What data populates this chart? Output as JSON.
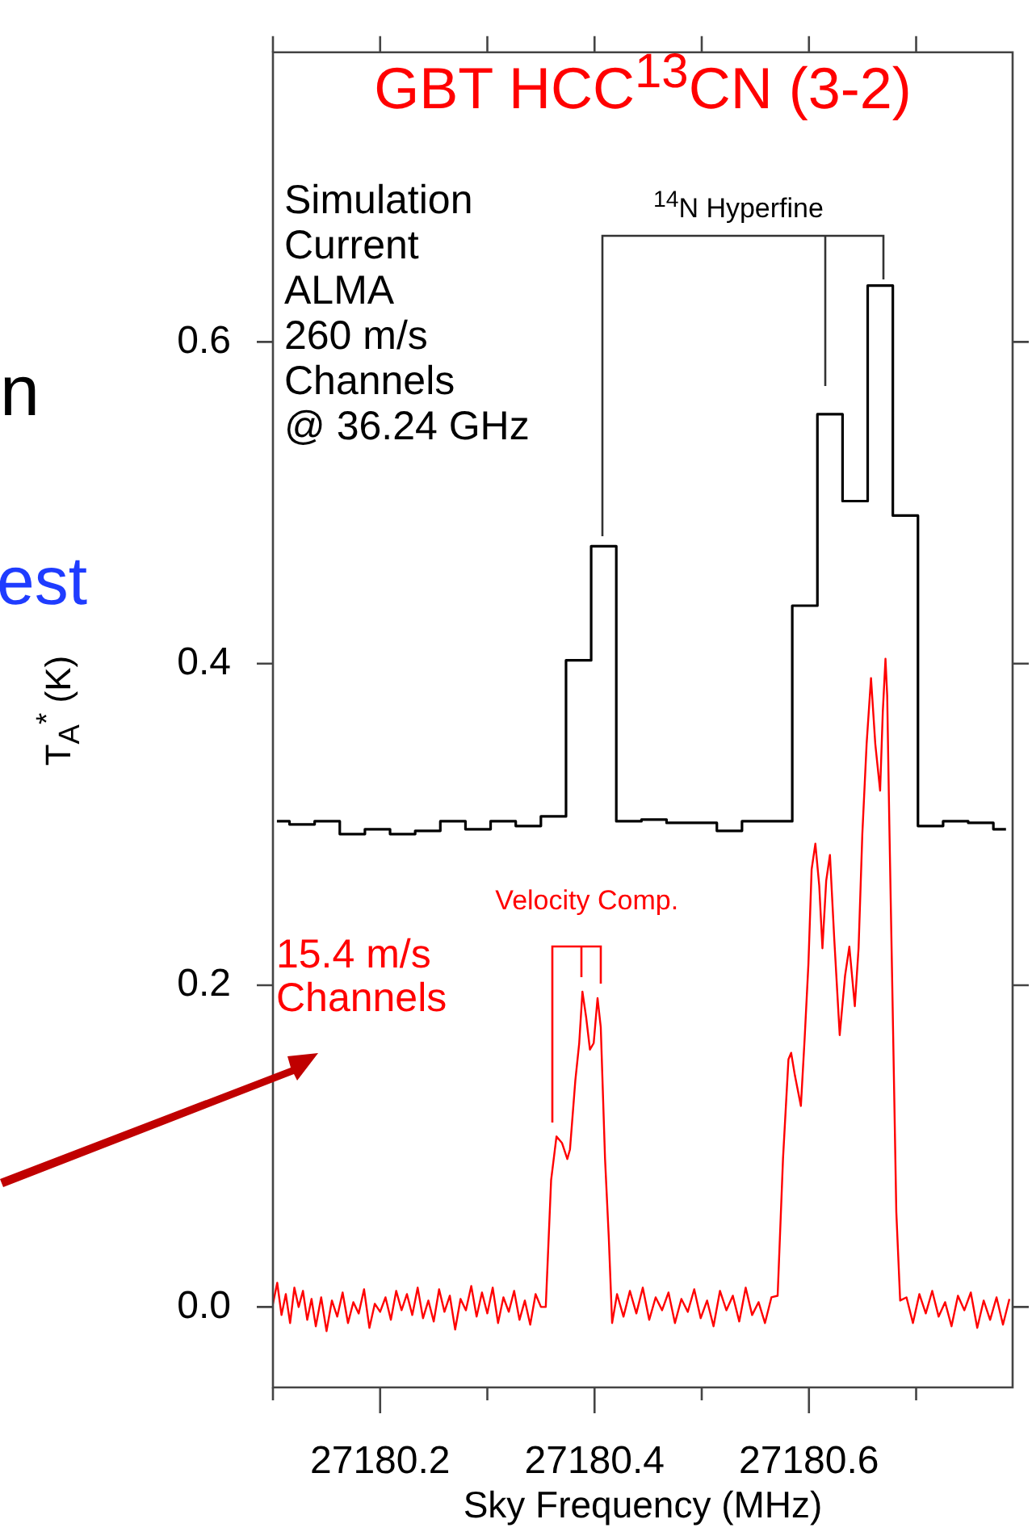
{
  "chart_data": {
    "type": "line",
    "title": "GBT HCC$^{13}$CN (3-2)",
    "xlabel": "Sky Frequency (MHz)",
    "ylabel": "T$_{A}$$^{*}$ (K)",
    "xlim": [
      27180.1,
      27180.79
    ],
    "xticks": [
      {
        "value": 27180.1,
        "label": null
      },
      27180.2,
      {
        "value": 27180.3,
        "label": null
      },
      27180.4,
      {
        "value": 27180.5,
        "label": null
      },
      27180.6,
      {
        "value": 27180.7,
        "label": null
      }
    ],
    "ylim": [
      -0.05,
      0.78
    ],
    "yticks": [
      {
        "value": 0,
        "label": "0.0"
      },
      0.2,
      0.4,
      0.6
    ],
    "annotations": [
      "n",
      "est",
      "Velocity Comp.",
      "$^{14}$N Hyperfine"
    ],
    "series": [
      {
        "name": "Simulation\nCurrent\nALMA\n260 m/s\nChannels\n@ 36.24 GHz",
        "type": "step",
        "color": "#000000",
        "x": [
          27180.1037,
          27180.1272,
          27180.1506,
          27180.1741,
          27180.1975,
          27180.221,
          27180.2444,
          27180.2679,
          27180.2913,
          27180.3148,
          27180.3382,
          27180.3617,
          27180.3851,
          27180.4086,
          27180.432,
          27180.4555,
          27180.4789,
          27180.5024,
          27180.5258,
          27180.5493,
          27180.5727,
          27180.5962,
          27180.6196,
          27180.6431,
          27180.6665,
          27180.69,
          27180.7134,
          27180.7369,
          27180.7603,
          27180.7838
        ],
        "values": [
          0.302,
          0.3,
          0.302,
          0.294,
          0.297,
          0.294,
          0.296,
          0.302,
          0.297,
          0.302,
          0.299,
          0.305,
          0.402,
          0.473,
          0.302,
          0.303,
          0.301,
          0.301,
          0.296,
          0.302,
          0.302,
          0.436,
          0.555,
          0.501,
          0.635,
          0.492,
          0.299,
          0.302,
          0.301,
          0.297
        ]
      },
      {
        "name": "15.4 m/s\nChannels",
        "type": "line",
        "color": "#ff0000",
        "x": [
          27180.1,
          27180.104,
          27180.108,
          27180.112,
          27180.116,
          27180.12,
          27180.124,
          27180.128,
          27180.132,
          27180.136,
          27180.14,
          27180.145,
          27180.15,
          27180.155,
          27180.16,
          27180.165,
          27180.17,
          27180.175,
          27180.18,
          27180.185,
          27180.19,
          27180.195,
          27180.2,
          27180.205,
          27180.21,
          27180.215,
          27180.22,
          27180.225,
          27180.23,
          27180.235,
          27180.24,
          27180.245,
          27180.25,
          27180.255,
          27180.26,
          27180.265,
          27180.27,
          27180.275,
          27180.28,
          27180.285,
          27180.29,
          27180.295,
          27180.3,
          27180.305,
          27180.31,
          27180.315,
          27180.32,
          27180.325,
          27180.33,
          27180.335,
          27180.34,
          27180.345,
          27180.35,
          27180.3545,
          27180.3595,
          27180.3645,
          27180.3696,
          27180.3746,
          27180.3771,
          27180.3821,
          27180.3857,
          27180.3887,
          27180.3922,
          27180.3957,
          27180.3992,
          27180.4028,
          27180.4058,
          27180.4098,
          27180.4133,
          27180.4164,
          27180.421,
          27180.427,
          27180.433,
          27180.439,
          27180.445,
          27180.451,
          27180.457,
          27180.463,
          27180.469,
          27180.475,
          27180.481,
          27180.487,
          27180.493,
          27180.499,
          27180.505,
          27180.511,
          27180.517,
          27180.523,
          27180.529,
          27180.535,
          27180.541,
          27180.547,
          27180.553,
          27180.559,
          27180.565,
          27180.5708,
          27180.5758,
          27180.5809,
          27180.5834,
          27180.5869,
          27180.5925,
          27180.596,
          27180.5995,
          27180.6025,
          27180.606,
          27180.6096,
          27180.6126,
          27180.6161,
          27180.6196,
          27180.6236,
          27180.6287,
          27180.6337,
          27180.6377,
          27180.6428,
          27180.6463,
          27180.6498,
          27180.6538,
          27180.6579,
          27180.6619,
          27180.6664,
          27180.6689,
          27180.6714,
          27180.673,
          27180.675,
          27180.678,
          27180.6815,
          27180.6851,
          27180.691,
          27180.697,
          27180.703,
          27180.709,
          27180.715,
          27180.721,
          27180.727,
          27180.733,
          27180.739,
          27180.745,
          27180.751,
          27180.757,
          27180.763,
          27180.769,
          27180.775,
          27180.781,
          27180.787
        ],
        "values": [
          0.002,
          0.015,
          -0.005,
          0.008,
          -0.01,
          0.012,
          0.0,
          0.01,
          -0.008,
          0.005,
          -0.012,
          0.006,
          -0.015,
          0.004,
          -0.006,
          0.009,
          -0.01,
          0.003,
          -0.004,
          0.011,
          -0.013,
          0.002,
          -0.003,
          0.006,
          -0.008,
          0.01,
          -0.002,
          0.008,
          -0.005,
          0.012,
          -0.007,
          0.004,
          -0.009,
          0.011,
          -0.003,
          0.007,
          -0.014,
          0.005,
          -0.002,
          0.013,
          -0.006,
          0.009,
          -0.004,
          0.012,
          -0.01,
          0.006,
          -0.003,
          0.01,
          -0.008,
          0.004,
          -0.011,
          0.008,
          0.0,
          0.0,
          0.079,
          0.106,
          0.102,
          0.092,
          0.098,
          0.141,
          0.164,
          0.196,
          0.18,
          0.16,
          0.164,
          0.192,
          0.174,
          0.092,
          0.043,
          -0.01,
          0.008,
          -0.006,
          0.01,
          -0.004,
          0.012,
          -0.008,
          0.006,
          -0.002,
          0.009,
          -0.01,
          0.005,
          -0.003,
          0.011,
          -0.007,
          0.004,
          -0.012,
          0.01,
          -0.002,
          0.007,
          -0.009,
          0.012,
          -0.005,
          0.003,
          -0.01,
          0.006,
          0.007,
          0.092,
          0.154,
          0.158,
          0.144,
          0.125,
          0.167,
          0.213,
          0.272,
          0.288,
          0.262,
          0.223,
          0.265,
          0.281,
          0.229,
          0.169,
          0.206,
          0.224,
          0.187,
          0.223,
          0.294,
          0.35,
          0.391,
          0.35,
          0.321,
          0.37,
          0.403,
          0.38,
          0.3,
          0.19,
          0.059,
          0.004,
          0.006,
          -0.01,
          0.008,
          -0.004,
          0.01,
          -0.006,
          0.003,
          -0.012,
          0.007,
          -0.002,
          0.009,
          -0.013,
          0.004,
          -0.008,
          0.006,
          -0.011,
          0.005
        ]
      }
    ]
  }
}
